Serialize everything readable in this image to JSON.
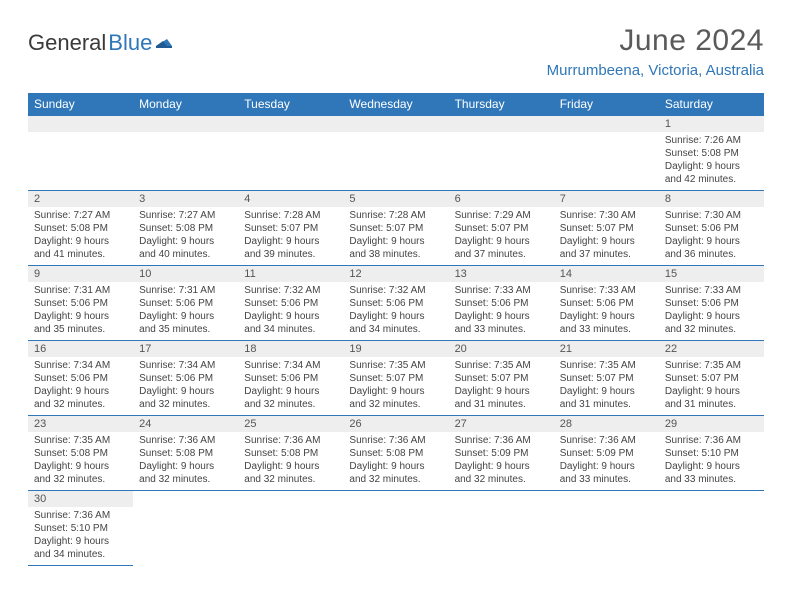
{
  "logo": {
    "text1": "General",
    "text2": "Blue"
  },
  "title": "June 2024",
  "location": "Murrumbeena, Victoria, Australia",
  "colors": {
    "header_bg": "#2f77b8",
    "header_text": "#ffffff",
    "daynum_bg": "#eeeeee",
    "border": "#2f77b8",
    "title_color": "#5a5a5a",
    "location_color": "#2f77b8"
  },
  "day_headers": [
    "Sunday",
    "Monday",
    "Tuesday",
    "Wednesday",
    "Thursday",
    "Friday",
    "Saturday"
  ],
  "weeks": [
    [
      null,
      null,
      null,
      null,
      null,
      null,
      {
        "n": "1",
        "sunrise": "7:26 AM",
        "sunset": "5:08 PM",
        "daylight": "9 hours and 42 minutes."
      }
    ],
    [
      {
        "n": "2",
        "sunrise": "7:27 AM",
        "sunset": "5:08 PM",
        "daylight": "9 hours and 41 minutes."
      },
      {
        "n": "3",
        "sunrise": "7:27 AM",
        "sunset": "5:08 PM",
        "daylight": "9 hours and 40 minutes."
      },
      {
        "n": "4",
        "sunrise": "7:28 AM",
        "sunset": "5:07 PM",
        "daylight": "9 hours and 39 minutes."
      },
      {
        "n": "5",
        "sunrise": "7:28 AM",
        "sunset": "5:07 PM",
        "daylight": "9 hours and 38 minutes."
      },
      {
        "n": "6",
        "sunrise": "7:29 AM",
        "sunset": "5:07 PM",
        "daylight": "9 hours and 37 minutes."
      },
      {
        "n": "7",
        "sunrise": "7:30 AM",
        "sunset": "5:07 PM",
        "daylight": "9 hours and 37 minutes."
      },
      {
        "n": "8",
        "sunrise": "7:30 AM",
        "sunset": "5:06 PM",
        "daylight": "9 hours and 36 minutes."
      }
    ],
    [
      {
        "n": "9",
        "sunrise": "7:31 AM",
        "sunset": "5:06 PM",
        "daylight": "9 hours and 35 minutes."
      },
      {
        "n": "10",
        "sunrise": "7:31 AM",
        "sunset": "5:06 PM",
        "daylight": "9 hours and 35 minutes."
      },
      {
        "n": "11",
        "sunrise": "7:32 AM",
        "sunset": "5:06 PM",
        "daylight": "9 hours and 34 minutes."
      },
      {
        "n": "12",
        "sunrise": "7:32 AM",
        "sunset": "5:06 PM",
        "daylight": "9 hours and 34 minutes."
      },
      {
        "n": "13",
        "sunrise": "7:33 AM",
        "sunset": "5:06 PM",
        "daylight": "9 hours and 33 minutes."
      },
      {
        "n": "14",
        "sunrise": "7:33 AM",
        "sunset": "5:06 PM",
        "daylight": "9 hours and 33 minutes."
      },
      {
        "n": "15",
        "sunrise": "7:33 AM",
        "sunset": "5:06 PM",
        "daylight": "9 hours and 32 minutes."
      }
    ],
    [
      {
        "n": "16",
        "sunrise": "7:34 AM",
        "sunset": "5:06 PM",
        "daylight": "9 hours and 32 minutes."
      },
      {
        "n": "17",
        "sunrise": "7:34 AM",
        "sunset": "5:06 PM",
        "daylight": "9 hours and 32 minutes."
      },
      {
        "n": "18",
        "sunrise": "7:34 AM",
        "sunset": "5:06 PM",
        "daylight": "9 hours and 32 minutes."
      },
      {
        "n": "19",
        "sunrise": "7:35 AM",
        "sunset": "5:07 PM",
        "daylight": "9 hours and 32 minutes."
      },
      {
        "n": "20",
        "sunrise": "7:35 AM",
        "sunset": "5:07 PM",
        "daylight": "9 hours and 31 minutes."
      },
      {
        "n": "21",
        "sunrise": "7:35 AM",
        "sunset": "5:07 PM",
        "daylight": "9 hours and 31 minutes."
      },
      {
        "n": "22",
        "sunrise": "7:35 AM",
        "sunset": "5:07 PM",
        "daylight": "9 hours and 31 minutes."
      }
    ],
    [
      {
        "n": "23",
        "sunrise": "7:35 AM",
        "sunset": "5:08 PM",
        "daylight": "9 hours and 32 minutes."
      },
      {
        "n": "24",
        "sunrise": "7:36 AM",
        "sunset": "5:08 PM",
        "daylight": "9 hours and 32 minutes."
      },
      {
        "n": "25",
        "sunrise": "7:36 AM",
        "sunset": "5:08 PM",
        "daylight": "9 hours and 32 minutes."
      },
      {
        "n": "26",
        "sunrise": "7:36 AM",
        "sunset": "5:08 PM",
        "daylight": "9 hours and 32 minutes."
      },
      {
        "n": "27",
        "sunrise": "7:36 AM",
        "sunset": "5:09 PM",
        "daylight": "9 hours and 32 minutes."
      },
      {
        "n": "28",
        "sunrise": "7:36 AM",
        "sunset": "5:09 PM",
        "daylight": "9 hours and 33 minutes."
      },
      {
        "n": "29",
        "sunrise": "7:36 AM",
        "sunset": "5:10 PM",
        "daylight": "9 hours and 33 minutes."
      }
    ],
    [
      {
        "n": "30",
        "sunrise": "7:36 AM",
        "sunset": "5:10 PM",
        "daylight": "9 hours and 34 minutes."
      },
      null,
      null,
      null,
      null,
      null,
      null
    ]
  ],
  "labels": {
    "sunrise": "Sunrise:",
    "sunset": "Sunset:",
    "daylight": "Daylight:"
  }
}
